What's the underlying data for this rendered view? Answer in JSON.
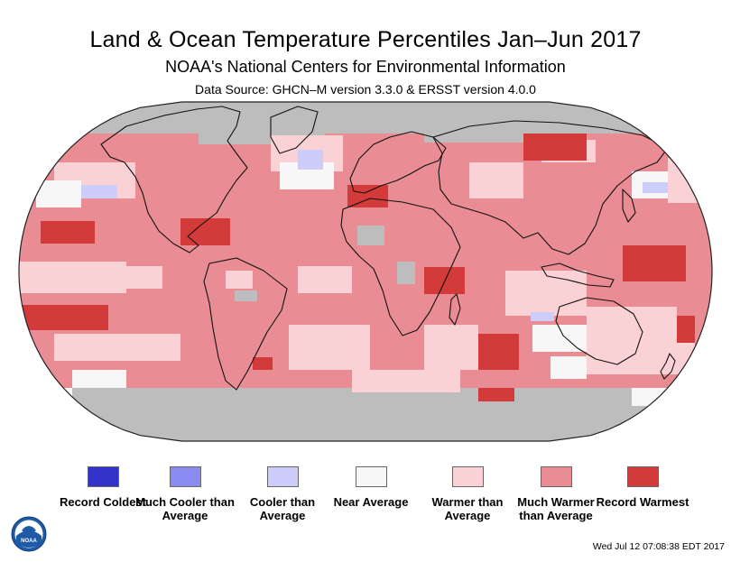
{
  "header": {
    "title": "Land & Ocean Temperature Percentiles Jan–Jun 2017",
    "subtitle": "NOAA's National Centers for Environmental Information",
    "source": "Data Source: GHCN–M version 3.3.0 & ERSST version 4.0.0"
  },
  "map": {
    "projection": "Robinson",
    "land_fill": "#e8a3a8",
    "no_data_color": "#bdbdbd"
  },
  "legend": {
    "items": [
      {
        "label": "Record Coldest",
        "color": "#3333cc"
      },
      {
        "label": "Much Cooler than Average",
        "color": "#8c8cf0"
      },
      {
        "label": "Cooler than Average",
        "color": "#cdcdfa"
      },
      {
        "label": "Near Average",
        "color": "#f7f7f7"
      },
      {
        "label": "Warmer than Average",
        "color": "#fad2d6"
      },
      {
        "label": "Much Warmer than Average",
        "color": "#e98c93"
      },
      {
        "label": "Record Warmest",
        "color": "#d33a3a"
      }
    ]
  },
  "logo": {
    "text": "NOAA"
  },
  "timestamp": "Wed Jul 12 07:08:38 EDT 2017"
}
